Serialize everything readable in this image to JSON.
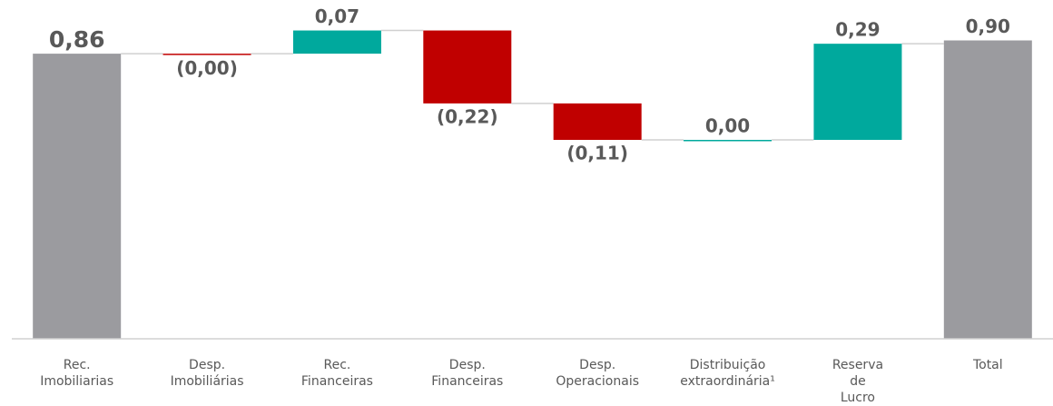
{
  "chart_data": {
    "type": "waterfall",
    "categories": [
      [
        "Rec.",
        "Imobiliarias"
      ],
      [
        "Desp.",
        "Imobiliárias"
      ],
      [
        "Rec.",
        "Financeiras"
      ],
      [
        "Desp.",
        "Financeiras"
      ],
      [
        "Desp.",
        "Operacionais"
      ],
      [
        "Distribuição",
        "extraordinária¹"
      ],
      [
        "Reserva",
        "de",
        "Lucro"
      ],
      [
        "Total"
      ]
    ],
    "values": [
      0.86,
      0,
      0.07,
      -0.22,
      -0.11,
      0,
      0.29,
      0.9
    ],
    "value_labels": [
      "0,86",
      "(0,00)",
      "0,07",
      "(0,22)",
      "(0,11)",
      "0,00",
      "0,29",
      "0,90"
    ],
    "measures": [
      "absolute",
      "decrease",
      "relative",
      "relative",
      "relative",
      "increase",
      "relative",
      "total"
    ],
    "colors": {
      "total": "#9b9b9f",
      "increase": "#00a99d",
      "decrease": "#c00000"
    },
    "ylim": [
      0,
      1
    ]
  }
}
